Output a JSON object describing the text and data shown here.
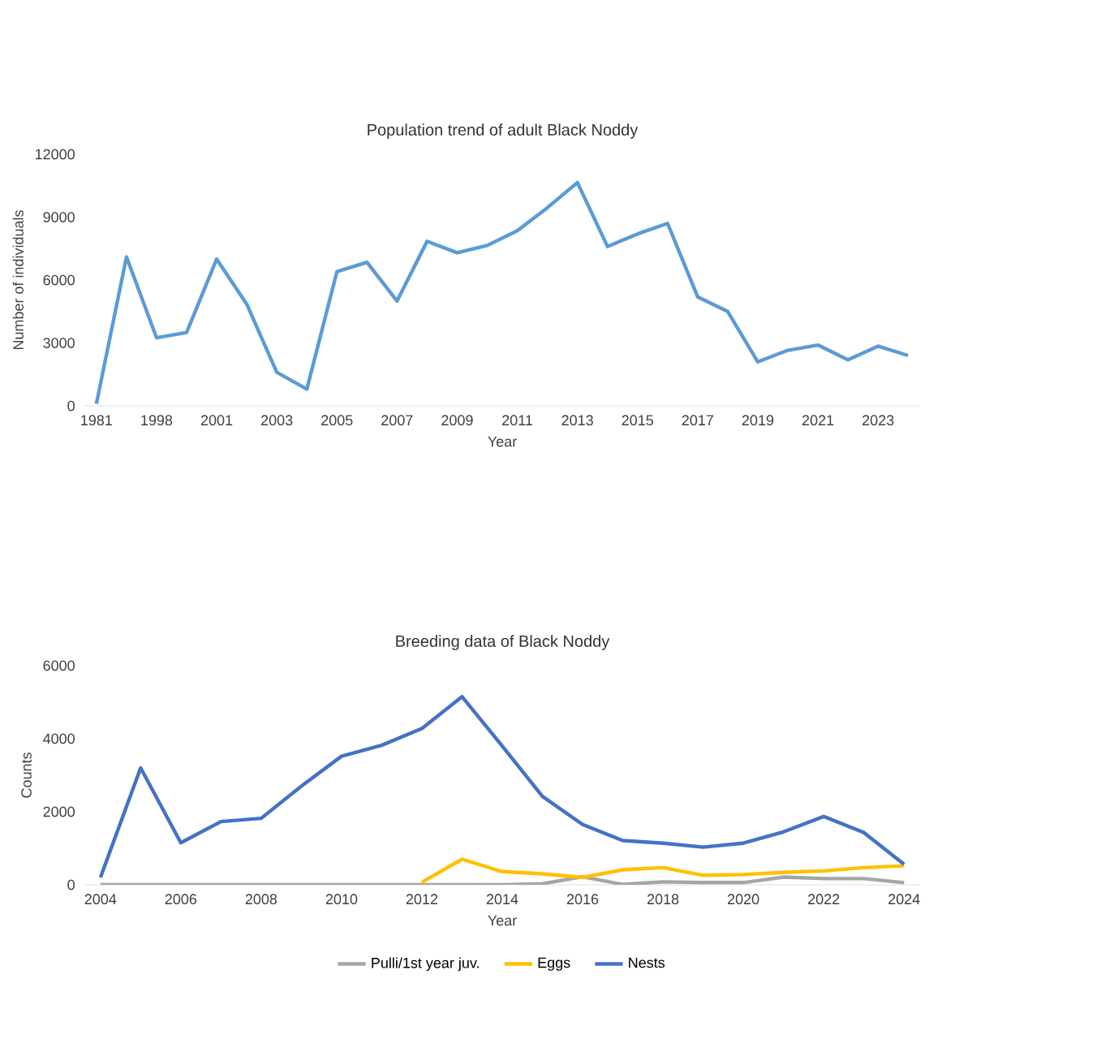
{
  "chart_data": [
    {
      "type": "line",
      "title": "Population trend of adult Black Noddy",
      "xlabel": "Year",
      "ylabel": "Number of individuals",
      "categories": [
        "1981",
        null,
        "1998",
        null,
        "2001",
        null,
        "2003",
        null,
        "2005",
        null,
        "2007",
        null,
        "2009",
        null,
        "2011",
        null,
        "2013",
        null,
        "2015",
        null,
        "2017",
        null,
        "2019",
        null,
        "2021",
        null,
        "2023",
        null
      ],
      "series": [
        {
          "color": "#5b9bd5",
          "values": [
            100,
            7100,
            3250,
            3500,
            7000,
            4850,
            1600,
            800,
            6400,
            6850,
            5000,
            7850,
            7300,
            7650,
            8350,
            9450,
            10650,
            7600,
            8200,
            8700,
            5200,
            4500,
            2100,
            2650,
            2900,
            2200,
            2850,
            2400
          ]
        }
      ],
      "ylim": [
        0,
        12000
      ],
      "yticks": [
        0,
        3000,
        6000,
        9000,
        12000
      ],
      "legend": false
    },
    {
      "type": "line",
      "title": "Breeding data of Black Noddy",
      "xlabel": "Year",
      "ylabel": "Counts",
      "categories": [
        "2004",
        null,
        "2006",
        null,
        "2008",
        null,
        "2010",
        null,
        "2012",
        null,
        "2014",
        null,
        "2016",
        null,
        "2018",
        null,
        "2020",
        null,
        "2022",
        null,
        "2024"
      ],
      "series": [
        {
          "name": "Pulli/1st year juv.",
          "color": "#a5a5a5",
          "values": [
            0,
            0,
            0,
            0,
            0,
            0,
            0,
            0,
            0,
            0,
            0,
            30,
            220,
            10,
            80,
            60,
            60,
            210,
            170,
            170,
            60
          ]
        },
        {
          "name": "Eggs",
          "color": "#ffc000",
          "values": [
            null,
            null,
            null,
            null,
            null,
            null,
            null,
            null,
            70,
            700,
            360,
            300,
            200,
            410,
            470,
            260,
            280,
            340,
            380,
            470,
            520
          ]
        },
        {
          "name": "Nests",
          "color": "#4472c4",
          "values": [
            200,
            3200,
            1150,
            1730,
            1820,
            2700,
            3520,
            3820,
            4280,
            5150,
            3800,
            2420,
            1650,
            1210,
            1140,
            1030,
            1140,
            1450,
            1870,
            1430,
            560
          ]
        }
      ],
      "ylim": [
        0,
        6000
      ],
      "yticks": [
        0,
        2000,
        4000,
        6000
      ],
      "legend": "bottom"
    }
  ]
}
